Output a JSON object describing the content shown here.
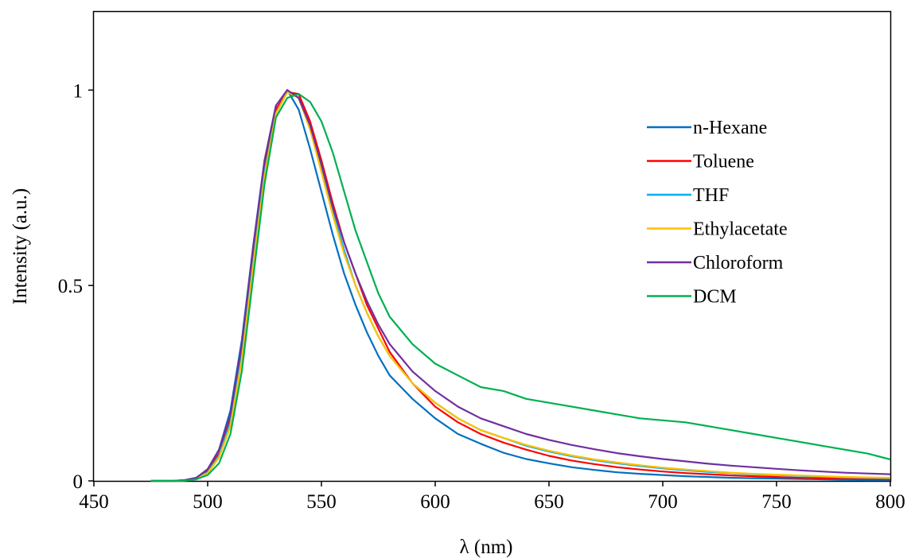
{
  "chart_data": {
    "type": "line",
    "title": "",
    "xlabel": "λ (nm)",
    "ylabel": "Intensity (a.u.)",
    "xlim": [
      450,
      800
    ],
    "ylim": [
      0,
      1.2
    ],
    "x_ticks": [
      450,
      500,
      550,
      600,
      650,
      700,
      750,
      800
    ],
    "y_ticks": [
      0,
      0.5,
      1
    ],
    "x_tick_labels": [
      "450",
      "500",
      "550",
      "600",
      "650",
      "700",
      "750",
      "800"
    ],
    "y_tick_labels": [
      "0",
      "0.5",
      "1"
    ],
    "grid": false,
    "legend_position": "right",
    "x": [
      475,
      480,
      485,
      490,
      495,
      500,
      505,
      510,
      515,
      520,
      525,
      530,
      535,
      540,
      545,
      550,
      555,
      560,
      565,
      570,
      575,
      580,
      590,
      600,
      610,
      620,
      630,
      640,
      650,
      660,
      670,
      680,
      690,
      700,
      710,
      720,
      730,
      740,
      750,
      760,
      770,
      780,
      790,
      800
    ],
    "series": [
      {
        "name": "n-Hexane",
        "color": "#0070C0",
        "values": [
          0,
          0,
          0,
          0.002,
          0.008,
          0.03,
          0.08,
          0.18,
          0.36,
          0.6,
          0.82,
          0.96,
          1.0,
          0.95,
          0.85,
          0.74,
          0.63,
          0.53,
          0.45,
          0.38,
          0.32,
          0.27,
          0.21,
          0.16,
          0.12,
          0.095,
          0.072,
          0.056,
          0.045,
          0.035,
          0.028,
          0.022,
          0.018,
          0.015,
          0.012,
          0.01,
          0.008,
          0.007,
          0.006,
          0.005,
          0.004,
          0.003,
          0.002,
          0.002
        ]
      },
      {
        "name": "Toluene",
        "color": "#FF0000",
        "values": [
          0,
          0,
          0,
          0.002,
          0.007,
          0.025,
          0.07,
          0.16,
          0.33,
          0.57,
          0.8,
          0.95,
          0.995,
          0.99,
          0.92,
          0.82,
          0.71,
          0.61,
          0.53,
          0.45,
          0.39,
          0.33,
          0.25,
          0.19,
          0.15,
          0.12,
          0.098,
          0.08,
          0.064,
          0.052,
          0.043,
          0.035,
          0.029,
          0.024,
          0.02,
          0.017,
          0.014,
          0.012,
          0.01,
          0.008,
          0.007,
          0.006,
          0.005,
          0.004
        ]
      },
      {
        "name": "THF",
        "color": "#00B0F0",
        "values": [
          0,
          0,
          0,
          0.001,
          0.006,
          0.022,
          0.065,
          0.15,
          0.32,
          0.56,
          0.79,
          0.94,
          0.995,
          0.98,
          0.9,
          0.8,
          0.69,
          0.59,
          0.5,
          0.43,
          0.37,
          0.32,
          0.25,
          0.2,
          0.16,
          0.13,
          0.11,
          0.09,
          0.075,
          0.063,
          0.053,
          0.045,
          0.038,
          0.032,
          0.027,
          0.023,
          0.02,
          0.017,
          0.015,
          0.013,
          0.011,
          0.009,
          0.008,
          0.007
        ]
      },
      {
        "name": "Ethylacetate",
        "color": "#FFC000",
        "values": [
          0,
          0,
          0,
          0.001,
          0.005,
          0.02,
          0.06,
          0.14,
          0.31,
          0.55,
          0.78,
          0.94,
          0.995,
          0.98,
          0.9,
          0.79,
          0.68,
          0.58,
          0.5,
          0.43,
          0.37,
          0.32,
          0.25,
          0.2,
          0.16,
          0.13,
          0.11,
          0.092,
          0.077,
          0.065,
          0.055,
          0.047,
          0.04,
          0.034,
          0.029,
          0.025,
          0.021,
          0.018,
          0.016,
          0.014,
          0.012,
          0.01,
          0.009,
          0.008
        ]
      },
      {
        "name": "Chloroform",
        "color": "#7030A0",
        "values": [
          0,
          0,
          0,
          0.002,
          0.008,
          0.03,
          0.08,
          0.17,
          0.35,
          0.6,
          0.82,
          0.96,
          1.0,
          0.98,
          0.91,
          0.81,
          0.7,
          0.61,
          0.53,
          0.46,
          0.4,
          0.35,
          0.28,
          0.23,
          0.19,
          0.16,
          0.14,
          0.12,
          0.105,
          0.092,
          0.081,
          0.071,
          0.063,
          0.056,
          0.05,
          0.044,
          0.039,
          0.035,
          0.031,
          0.027,
          0.024,
          0.021,
          0.019,
          0.017
        ]
      },
      {
        "name": "DCM",
        "color": "#00B050",
        "values": [
          0,
          0,
          0,
          0.001,
          0.004,
          0.015,
          0.045,
          0.12,
          0.28,
          0.52,
          0.76,
          0.93,
          0.98,
          0.99,
          0.97,
          0.92,
          0.84,
          0.74,
          0.64,
          0.56,
          0.48,
          0.42,
          0.35,
          0.3,
          0.27,
          0.24,
          0.23,
          0.21,
          0.2,
          0.19,
          0.18,
          0.17,
          0.16,
          0.155,
          0.15,
          0.14,
          0.13,
          0.12,
          0.11,
          0.1,
          0.09,
          0.08,
          0.07,
          0.055
        ]
      }
    ]
  }
}
